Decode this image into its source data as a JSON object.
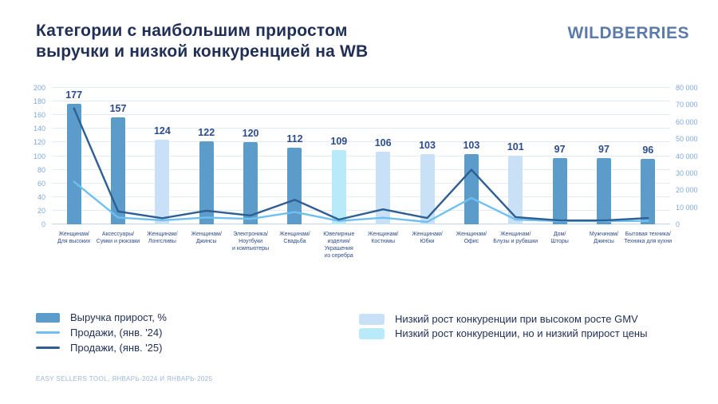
{
  "header": {
    "title_lines": [
      "Категории с наибольшим приростом",
      "выручки и низкой конкуренцией на WB"
    ],
    "logo_text": "WILDBERRIES"
  },
  "colors": {
    "bar_dark": "#5B9CCA",
    "bar_light": "#C9E1F6",
    "bar_cyan": "#B9EAF9",
    "line_light": "#6FC0F2",
    "line_dark": "#2F5E93",
    "title": "#1F2F55",
    "logo": "#5C7BA8",
    "value_label": "#2C4C8C",
    "axis_label": "#7FA9D9",
    "grid": "#E4EBF7",
    "footer": "#9DB6DB"
  },
  "chart_data": {
    "type": "bar",
    "title": "Категории с наибольшим приростом выручки и низкой конкуренцией на WB",
    "categories": [
      "Женщинам/Для высоких",
      "Аксессуары/Сумки и рюкзаки",
      "Женщинам/Лонгсливы",
      "Женщинам/Джинсы",
      "Электроника/Ноутбуки и компьютеры",
      "Женщинам/Свадьба",
      "Ювелирные изделия/Украшения из серебра",
      "Женщинам/Костюмы",
      "Женщинам/Юбки",
      "Женщинам/Офис",
      "Женщинам/Блузы и рубашки",
      "Дом/Шторы",
      "Мужчинам/Джинсы",
      "Бытовая техника/Техника для кухни"
    ],
    "category_label_lines": [
      [
        "Женщинам/",
        "Для высоких"
      ],
      [
        "Аксессуары/",
        "Сумки и рюкзаки"
      ],
      [
        "Женщинам/",
        "Лонгсливы"
      ],
      [
        "Женщинам/",
        "Джинсы"
      ],
      [
        "Электроника/",
        "Ноутбуки",
        "и компьютеры"
      ],
      [
        "Женщинам/",
        "Свадьба"
      ],
      [
        "Ювелирные",
        "изделия/",
        "Украшения",
        "из серебра"
      ],
      [
        "Женщинам/",
        "Костюмы"
      ],
      [
        "Женщинам/",
        "Юбки"
      ],
      [
        "Женщинам/",
        "Офис"
      ],
      [
        "Женщинам/",
        "Блузы и рубашки"
      ],
      [
        "Дом/",
        "Шторы"
      ],
      [
        "Мужчинам/",
        "Джинсы"
      ],
      [
        "Бытовая техника/",
        "Техника для кухни"
      ]
    ],
    "bars": {
      "name": "Выручка прирост, %",
      "axis": "left",
      "values": [
        177,
        157,
        124,
        122,
        120,
        112,
        109,
        106,
        103,
        103,
        101,
        97,
        97,
        96
      ],
      "styles": [
        "dark",
        "dark",
        "light",
        "dark",
        "dark",
        "dark",
        "cyan",
        "light",
        "light",
        "dark",
        "light",
        "dark",
        "dark",
        "dark"
      ]
    },
    "lines": [
      {
        "id": "sales-line-jan24",
        "name": "Продажи, (янв. '24)",
        "axis": "right",
        "color_key": "line_light",
        "values": [
          25000,
          4000,
          2400,
          4000,
          3200,
          7200,
          2000,
          3900,
          1400,
          15500,
          2800,
          1900,
          1900,
          2000
        ]
      },
      {
        "id": "sales-line-jan25",
        "name": "Продажи, (янв. '25)",
        "axis": "right",
        "color_key": "line_dark",
        "values": [
          68000,
          7600,
          3600,
          8000,
          5200,
          14400,
          2800,
          8800,
          3700,
          32000,
          4200,
          2300,
          2300,
          3700
        ]
      }
    ],
    "left_axis": {
      "min": 0,
      "max": 200,
      "step": 20,
      "ticks": [
        "0",
        "20",
        "40",
        "60",
        "80",
        "100",
        "120",
        "140",
        "160",
        "180",
        "200"
      ]
    },
    "right_axis": {
      "min": 0,
      "max": 80000,
      "step": 10000,
      "ticks": [
        "0",
        "10 000",
        "20 000",
        "30 000",
        "40 000",
        "50 000",
        "60 000",
        "70 000",
        "80 000"
      ]
    },
    "grid": true,
    "legend_position": "bottom"
  },
  "legend_left": {
    "items": [
      {
        "label": "Выручка прирост, %",
        "swatch": "bar_dark"
      },
      {
        "label": "Продажи, (янв. '24)",
        "swatch": "line_light"
      },
      {
        "label": "Продажи, (янв. '25)",
        "swatch": "line_dark"
      }
    ]
  },
  "legend_right": {
    "items": [
      {
        "label": "Низкий рост конкуренции при высоком росте GMV",
        "swatch": "bar_light"
      },
      {
        "label": "Низкий рост конкуренции, но и низкий прирост цены",
        "swatch": "bar_cyan"
      }
    ]
  },
  "footer": {
    "text": "EASY SELLERS TOOL, ЯНВАРЬ-2024 И ЯНВАРЬ-2025"
  }
}
